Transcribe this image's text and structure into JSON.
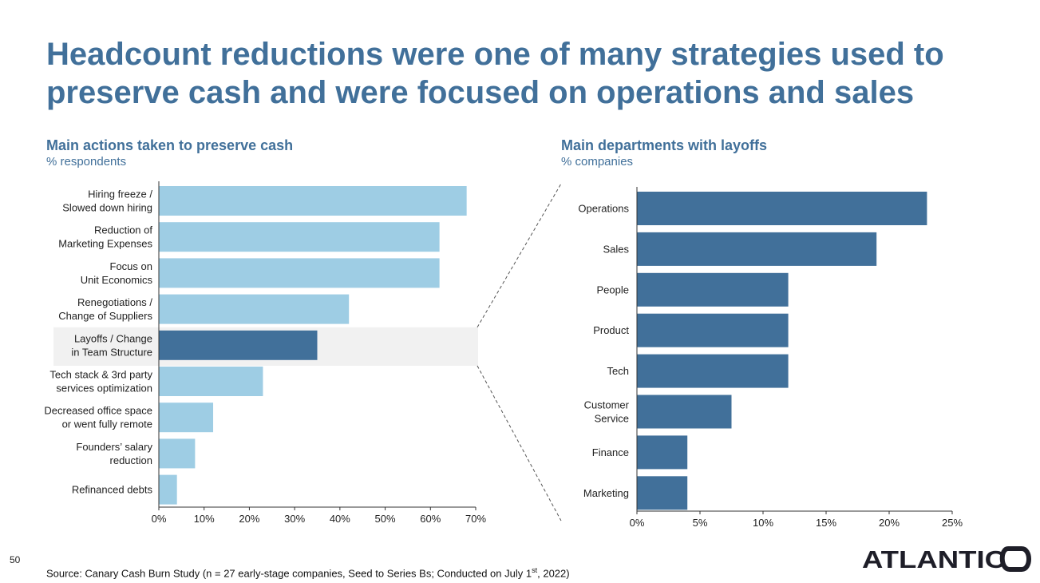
{
  "slide": {
    "title": "Headcount reductions were one of many strategies used to preserve cash and were focused on operations and sales",
    "page_number": "50",
    "source_prefix": "Source: Canary Cash Burn Study (n = 27 early-stage companies, Seed to Series Bs; Conducted on July 1",
    "source_sup": "st",
    "source_suffix": ", 2022)",
    "logo_text": "ATLANTICO"
  },
  "chart_data": [
    {
      "type": "bar",
      "orientation": "horizontal",
      "title": "Main actions taken to preserve cash",
      "subtitle": "% respondents",
      "categories": [
        [
          "Hiring freeze /",
          "Slowed down hiring"
        ],
        [
          "Reduction of",
          "Marketing Expenses"
        ],
        [
          "Focus on",
          "Unit Economics"
        ],
        [
          "Renegotiations /",
          "Change of Suppliers"
        ],
        [
          "Layoffs / Change",
          "in Team Structure"
        ],
        [
          "Tech stack & 3rd party",
          "services optimization"
        ],
        [
          "Decreased office space",
          "or went fully remote"
        ],
        [
          "Founders’ salary",
          "reduction"
        ],
        [
          "Refinanced debts"
        ]
      ],
      "values": [
        68,
        62,
        62,
        42,
        35,
        23,
        12,
        8,
        4
      ],
      "unit": "%",
      "highlight_index": 4,
      "xlim": [
        0,
        70
      ],
      "ticks": [
        "0%",
        "10%",
        "20%",
        "30%",
        "40%",
        "50%",
        "60%",
        "70%"
      ],
      "colors": {
        "bar": "#9ECDE4",
        "highlight": "#41709A",
        "highlight_band": "#F1F1F1"
      }
    },
    {
      "type": "bar",
      "orientation": "horizontal",
      "title": "Main departments with layoffs",
      "subtitle": "% companies",
      "categories": [
        [
          "Operations"
        ],
        [
          "Sales"
        ],
        [
          "People"
        ],
        [
          "Product"
        ],
        [
          "Tech"
        ],
        [
          "Customer",
          "Service"
        ],
        [
          "Finance"
        ],
        [
          "Marketing"
        ]
      ],
      "values": [
        23,
        19,
        12,
        12,
        12,
        7.5,
        4,
        4
      ],
      "unit": "%",
      "xlim": [
        0,
        25
      ],
      "ticks": [
        "0%",
        "5%",
        "10%",
        "15%",
        "20%",
        "25%"
      ],
      "colors": {
        "bar": "#41709A"
      }
    }
  ]
}
